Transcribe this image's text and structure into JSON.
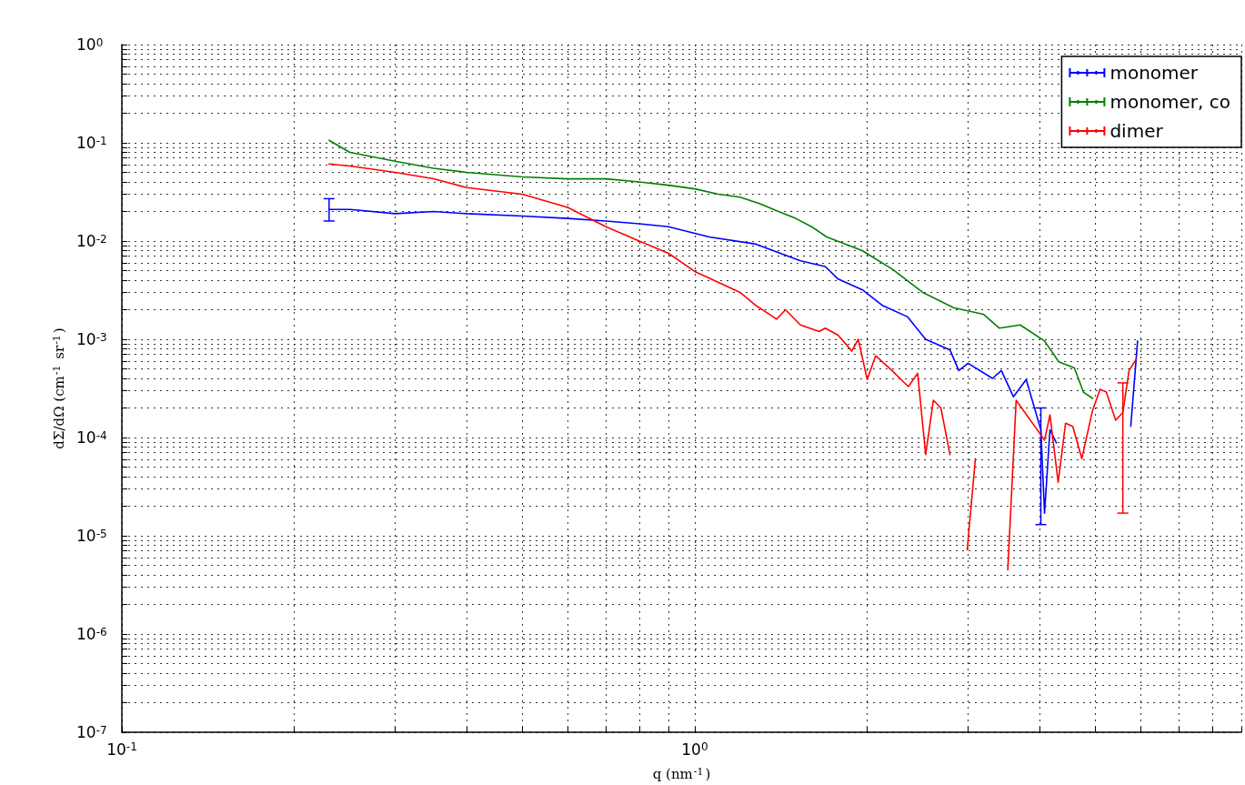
{
  "chart_data": {
    "type": "line",
    "xlabel": "q (nm$^{-1}$)",
    "ylabel": "dΣ/dΩ (cm$^{-1}$ sr$^{-1}$)",
    "log": "xy",
    "grid": true,
    "legend": "top right",
    "marker": "none",
    "line_style": "solid",
    "xlim": [
      0.1,
      9
    ],
    "ylim": [
      1e-07,
      1
    ],
    "xticks": [
      {
        "value": 0.1,
        "label": "10$^{-1}$"
      },
      {
        "value": 0.2,
        "label": null
      },
      {
        "value": 0.3,
        "label": null
      },
      {
        "value": 0.4,
        "label": null
      },
      {
        "value": 0.5,
        "label": null
      },
      {
        "value": 0.6,
        "label": null
      },
      {
        "value": 0.7,
        "label": null
      },
      {
        "value": 0.8,
        "label": null
      },
      {
        "value": 0.9,
        "label": null
      },
      {
        "value": 1,
        "label": "10$^{0}$"
      },
      {
        "value": 2,
        "label": null
      },
      {
        "value": 3,
        "label": null
      },
      {
        "value": 4,
        "label": null
      },
      {
        "value": 5,
        "label": null
      },
      {
        "value": 6,
        "label": null
      },
      {
        "value": 7,
        "label": null
      },
      {
        "value": 8,
        "label": null
      },
      {
        "value": 9,
        "label": null
      }
    ],
    "yticks": [
      {
        "value": 1e-07,
        "label": "10$^{-7}$"
      },
      {
        "value": 2e-07,
        "label": null
      },
      {
        "value": 3e-07,
        "label": null
      },
      {
        "value": 4e-07,
        "label": null
      },
      {
        "value": 5e-07,
        "label": null
      },
      {
        "value": 6e-07,
        "label": null
      },
      {
        "value": 7e-07,
        "label": null
      },
      {
        "value": 8e-07,
        "label": null
      },
      {
        "value": 9e-07,
        "label": null
      },
      {
        "value": 1e-06,
        "label": "10$^{-6}$"
      },
      {
        "value": 2e-06,
        "label": null
      },
      {
        "value": 3e-06,
        "label": null
      },
      {
        "value": 4e-06,
        "label": null
      },
      {
        "value": 5e-06,
        "label": null
      },
      {
        "value": 6e-06,
        "label": null
      },
      {
        "value": 7e-06,
        "label": null
      },
      {
        "value": 8e-06,
        "label": null
      },
      {
        "value": 9e-06,
        "label": null
      },
      {
        "value": 1e-05,
        "label": "10$^{-5}$"
      },
      {
        "value": 2e-05,
        "label": null
      },
      {
        "value": 3e-05,
        "label": null
      },
      {
        "value": 4e-05,
        "label": null
      },
      {
        "value": 5e-05,
        "label": null
      },
      {
        "value": 6e-05,
        "label": null
      },
      {
        "value": 7e-05,
        "label": null
      },
      {
        "value": 8e-05,
        "label": null
      },
      {
        "value": 9e-05,
        "label": null
      },
      {
        "value": 0.0001,
        "label": "10$^{-4}$"
      },
      {
        "value": 0.0002,
        "label": null
      },
      {
        "value": 0.0003,
        "label": null
      },
      {
        "value": 0.0004,
        "label": null
      },
      {
        "value": 0.0005,
        "label": null
      },
      {
        "value": 0.0006,
        "label": null
      },
      {
        "value": 0.0007,
        "label": null
      },
      {
        "value": 0.0008,
        "label": null
      },
      {
        "value": 0.0009,
        "label": null
      },
      {
        "value": 0.001,
        "label": "10$^{-3}$"
      },
      {
        "value": 0.002,
        "label": null
      },
      {
        "value": 0.003,
        "label": null
      },
      {
        "value": 0.004,
        "label": null
      },
      {
        "value": 0.005,
        "label": null
      },
      {
        "value": 0.006,
        "label": null
      },
      {
        "value": 0.007,
        "label": null
      },
      {
        "value": 0.008,
        "label": null
      },
      {
        "value": 0.009,
        "label": null
      },
      {
        "value": 0.01,
        "label": "10$^{-2}$"
      },
      {
        "value": 0.02,
        "label": null
      },
      {
        "value": 0.03,
        "label": null
      },
      {
        "value": 0.04,
        "label": null
      },
      {
        "value": 0.05,
        "label": null
      },
      {
        "value": 0.06,
        "label": null
      },
      {
        "value": 0.07,
        "label": null
      },
      {
        "value": 0.08,
        "label": null
      },
      {
        "value": 0.09,
        "label": null
      },
      {
        "value": 0.1,
        "label": "10$^{-1}$"
      },
      {
        "value": 0.2,
        "label": null
      },
      {
        "value": 0.3,
        "label": null
      },
      {
        "value": 0.4,
        "label": null
      },
      {
        "value": 0.5,
        "label": null
      },
      {
        "value": 0.6,
        "label": null
      },
      {
        "value": 0.7,
        "label": null
      },
      {
        "value": 0.8,
        "label": null
      },
      {
        "value": 0.9,
        "label": null
      },
      {
        "value": 1,
        "label": "10$^{0}$"
      }
    ],
    "series": [
      {
        "name": "monomer",
        "color": "#0000ff",
        "x": [
          0.23,
          0.25,
          0.3,
          0.35,
          0.4,
          0.5,
          0.6,
          0.7,
          0.8,
          0.9,
          1.0,
          1.06,
          1.28,
          1.53,
          1.69,
          1.78,
          1.96,
          2.13,
          2.35,
          2.53,
          2.79,
          2.89,
          3.0,
          3.31,
          3.43,
          3.6,
          3.79,
          4.02,
          4.08,
          4.17,
          4.28,
          5.0,
          5.77,
          5.93
        ],
        "values": [
          0.021,
          0.021,
          0.019,
          0.02,
          0.019,
          0.018,
          0.017,
          0.016,
          0.015,
          0.014,
          0.012,
          0.011,
          0.0093,
          0.0063,
          0.0055,
          0.0041,
          0.0032,
          0.0022,
          0.0017,
          0.001,
          0.00078,
          0.00048,
          0.00057,
          0.0004,
          0.00048,
          0.00026,
          0.00039,
          0.00012,
          1.7e-05,
          0.00012,
          8.8e-05,
          null,
          0.00013,
          0.00096
        ],
        "errors": [
          [
            0.016,
            0.027
          ],
          null,
          null,
          null,
          null,
          null,
          null,
          null,
          null,
          null,
          null,
          null,
          null,
          null,
          null,
          null,
          null,
          null,
          null,
          null,
          null,
          null,
          null,
          null,
          null,
          null,
          null,
          [
            1.3e-05,
            0.0002
          ],
          null,
          null,
          null,
          null,
          null,
          null
        ]
      },
      {
        "name": "monomer, co",
        "color": "#008000",
        "x": [
          0.23,
          0.25,
          0.3,
          0.35,
          0.4,
          0.5,
          0.6,
          0.7,
          0.8,
          0.9,
          1.0,
          1.1,
          1.2,
          1.3,
          1.4,
          1.5,
          1.6,
          1.7,
          1.8,
          1.96,
          2.21,
          2.5,
          2.83,
          3.19,
          3.4,
          3.7,
          4.08,
          4.32,
          4.6,
          4.77,
          4.95
        ],
        "values": [
          0.106,
          0.08,
          0.065,
          0.055,
          0.05,
          0.045,
          0.043,
          0.043,
          0.04,
          0.037,
          0.034,
          0.03,
          0.028,
          0.024,
          0.02,
          0.017,
          0.014,
          0.011,
          0.0097,
          0.008,
          0.0052,
          0.003,
          0.0021,
          0.0018,
          0.0013,
          0.0014,
          0.00096,
          0.00059,
          0.00051,
          0.00029,
          0.00025
        ]
      },
      {
        "name": "dimer",
        "color": "#ff0000",
        "x": [
          0.23,
          0.25,
          0.3,
          0.35,
          0.4,
          0.5,
          0.6,
          0.7,
          0.8,
          0.9,
          1.0,
          1.06,
          1.2,
          1.28,
          1.39,
          1.44,
          1.53,
          1.65,
          1.69,
          1.78,
          1.88,
          1.93,
          2.0,
          2.07,
          2.21,
          2.36,
          2.45,
          2.53,
          2.61,
          2.69,
          2.79,
          2.9,
          2.99,
          3.09,
          3.3,
          3.52,
          3.64,
          4.08,
          4.17,
          4.31,
          4.44,
          4.57,
          4.74,
          4.95,
          5.1,
          5.23,
          5.43,
          5.59,
          5.73,
          5.9
        ],
        "values": [
          0.061,
          0.058,
          0.05,
          0.043,
          0.035,
          0.03,
          0.022,
          0.014,
          0.01,
          0.0075,
          0.0049,
          0.0042,
          0.003,
          0.0022,
          0.0016,
          0.002,
          0.0014,
          0.0012,
          0.0013,
          0.0011,
          0.00076,
          0.001,
          0.00039,
          0.00068,
          0.00048,
          0.00033,
          0.00045,
          6.7e-05,
          0.00024,
          0.0002,
          6.7e-05,
          null,
          7.2e-06,
          6.1e-05,
          null,
          4.5e-06,
          0.00024,
          9.4e-05,
          0.00017,
          3.5e-05,
          0.00014,
          0.00013,
          6.1e-05,
          0.00019,
          0.00031,
          0.00029,
          0.00015,
          0.00018,
          0.00048,
          0.00063
        ],
        "errors": [
          null,
          null,
          null,
          null,
          null,
          null,
          null,
          null,
          null,
          null,
          null,
          null,
          null,
          null,
          null,
          null,
          null,
          null,
          null,
          null,
          null,
          null,
          null,
          null,
          null,
          null,
          null,
          null,
          null,
          null,
          null,
          null,
          null,
          null,
          null,
          null,
          null,
          null,
          null,
          null,
          null,
          null,
          null,
          null,
          null,
          null,
          null,
          [
            1.7e-05,
            0.00036
          ],
          null,
          null
        ]
      }
    ]
  }
}
